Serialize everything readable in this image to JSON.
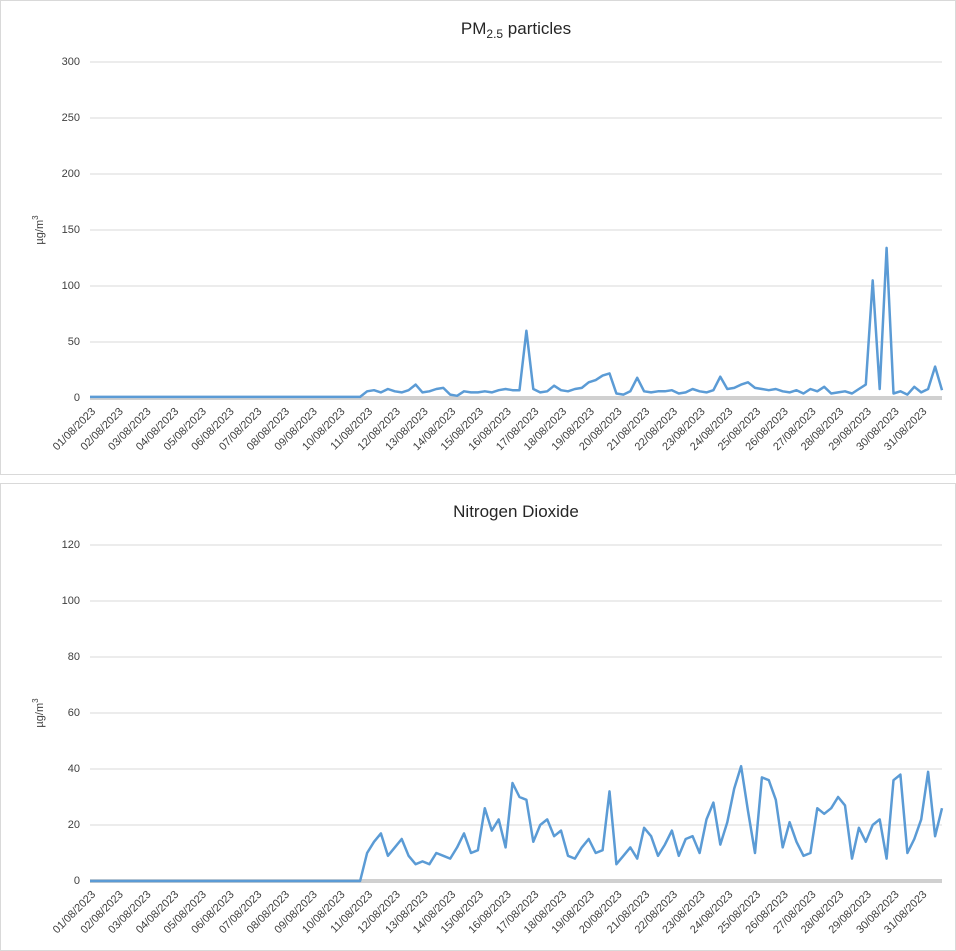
{
  "chart_data": [
    {
      "type": "line",
      "title": "PM",
      "title_subscript": "2.5",
      "title_suffix": " particles",
      "y_label": "µg/m",
      "y_label_superscript": "3",
      "categories": [
        "01/08/2023",
        null,
        null,
        null,
        "02/08/2023",
        null,
        null,
        null,
        "03/08/2023",
        null,
        null,
        null,
        "04/08/2023",
        null,
        null,
        null,
        "05/08/2023",
        null,
        null,
        null,
        "06/08/2023",
        null,
        null,
        null,
        "07/08/2023",
        null,
        null,
        null,
        "08/08/2023",
        null,
        null,
        null,
        "09/08/2023",
        null,
        null,
        null,
        "10/08/2023",
        null,
        null,
        null,
        "11/08/2023",
        null,
        null,
        null,
        "12/08/2023",
        null,
        null,
        null,
        "13/08/2023",
        null,
        null,
        null,
        "14/08/2023",
        null,
        null,
        null,
        "15/08/2023",
        null,
        null,
        null,
        "16/08/2023",
        null,
        null,
        null,
        "17/08/2023",
        null,
        null,
        null,
        "18/08/2023",
        null,
        null,
        null,
        "19/08/2023",
        null,
        null,
        null,
        "20/08/2023",
        null,
        null,
        null,
        "21/08/2023",
        null,
        null,
        null,
        "22/08/2023",
        null,
        null,
        null,
        "23/08/2023",
        null,
        null,
        null,
        "24/08/2023",
        null,
        null,
        null,
        "25/08/2023",
        null,
        null,
        null,
        "26/08/2023",
        null,
        null,
        null,
        "27/08/2023",
        null,
        null,
        null,
        "28/08/2023",
        null,
        null,
        null,
        "29/08/2023",
        null,
        null,
        null,
        "30/08/2023",
        null,
        null,
        null,
        "31/08/2023",
        null,
        null,
        null
      ],
      "series": [
        {
          "name": "PM2.5",
          "color": "#5b9bd5",
          "values": [
            1,
            1,
            1,
            1,
            1,
            1,
            1,
            1,
            1,
            1,
            1,
            1,
            1,
            1,
            1,
            1,
            1,
            1,
            1,
            1,
            1,
            1,
            1,
            1,
            1,
            1,
            1,
            1,
            1,
            1,
            1,
            1,
            1,
            1,
            1,
            1,
            1,
            1,
            1,
            1,
            6,
            7,
            5,
            8,
            6,
            5,
            7,
            12,
            5,
            6,
            8,
            9,
            3,
            2,
            6,
            5,
            5,
            6,
            5,
            7,
            8,
            7,
            7,
            60,
            8,
            5,
            6,
            11,
            7,
            6,
            8,
            9,
            14,
            16,
            20,
            22,
            4,
            3,
            6,
            18,
            6,
            5,
            6,
            6,
            7,
            4,
            5,
            8,
            6,
            5,
            7,
            19,
            8,
            9,
            12,
            14,
            9,
            8,
            7,
            8,
            6,
            5,
            7,
            4,
            8,
            6,
            10,
            4,
            5,
            6,
            4,
            8,
            12,
            105,
            8,
            134,
            4,
            6,
            3,
            10,
            5,
            8,
            28,
            7
          ]
        }
      ],
      "ylim": [
        0,
        300
      ],
      "yticks": [
        0,
        50,
        100,
        150,
        200,
        250,
        300
      ],
      "grid": true
    },
    {
      "type": "line",
      "title": "Nitrogen Dioxide",
      "y_label": "µg/m",
      "y_label_superscript": "3",
      "categories": [
        "01/08/2023",
        null,
        null,
        null,
        "02/08/2023",
        null,
        null,
        null,
        "03/08/2023",
        null,
        null,
        null,
        "04/08/2023",
        null,
        null,
        null,
        "05/08/2023",
        null,
        null,
        null,
        "06/08/2023",
        null,
        null,
        null,
        "07/08/2023",
        null,
        null,
        null,
        "08/08/2023",
        null,
        null,
        null,
        "09/08/2023",
        null,
        null,
        null,
        "10/08/2023",
        null,
        null,
        null,
        "11/08/2023",
        null,
        null,
        null,
        "12/08/2023",
        null,
        null,
        null,
        "13/08/2023",
        null,
        null,
        null,
        "14/08/2023",
        null,
        null,
        null,
        "15/08/2023",
        null,
        null,
        null,
        "16/08/2023",
        null,
        null,
        null,
        "17/08/2023",
        null,
        null,
        null,
        "18/08/2023",
        null,
        null,
        null,
        "19/08/2023",
        null,
        null,
        null,
        "20/08/2023",
        null,
        null,
        null,
        "21/08/2023",
        null,
        null,
        null,
        "22/08/2023",
        null,
        null,
        null,
        "23/08/2023",
        null,
        null,
        null,
        "24/08/2023",
        null,
        null,
        null,
        "25/08/2023",
        null,
        null,
        null,
        "26/08/2023",
        null,
        null,
        null,
        "27/08/2023",
        null,
        null,
        null,
        "28/08/2023",
        null,
        null,
        null,
        "29/08/2023",
        null,
        null,
        null,
        "30/08/2023",
        null,
        null,
        null,
        "31/08/2023",
        null,
        null,
        null
      ],
      "series": [
        {
          "name": "NO2",
          "color": "#5b9bd5",
          "values": [
            0,
            0,
            0,
            0,
            0,
            0,
            0,
            0,
            0,
            0,
            0,
            0,
            0,
            0,
            0,
            0,
            0,
            0,
            0,
            0,
            0,
            0,
            0,
            0,
            0,
            0,
            0,
            0,
            0,
            0,
            0,
            0,
            0,
            0,
            0,
            0,
            0,
            0,
            0,
            0,
            10,
            14,
            17,
            9,
            12,
            15,
            9,
            6,
            7,
            6,
            10,
            9,
            8,
            12,
            17,
            10,
            11,
            26,
            18,
            22,
            12,
            35,
            30,
            29,
            14,
            20,
            22,
            16,
            18,
            9,
            8,
            12,
            15,
            10,
            11,
            32,
            6,
            9,
            12,
            8,
            19,
            16,
            9,
            13,
            18,
            9,
            15,
            16,
            10,
            22,
            28,
            13,
            21,
            33,
            41,
            25,
            10,
            37,
            36,
            29,
            12,
            21,
            14,
            9,
            10,
            26,
            24,
            26,
            30,
            27,
            8,
            19,
            14,
            20,
            22,
            8,
            36,
            38,
            10,
            15,
            22,
            39,
            16,
            26
          ]
        }
      ],
      "ylim": [
        0,
        120
      ],
      "yticks": [
        0,
        20,
        40,
        60,
        80,
        100,
        120
      ],
      "grid": true
    }
  ]
}
